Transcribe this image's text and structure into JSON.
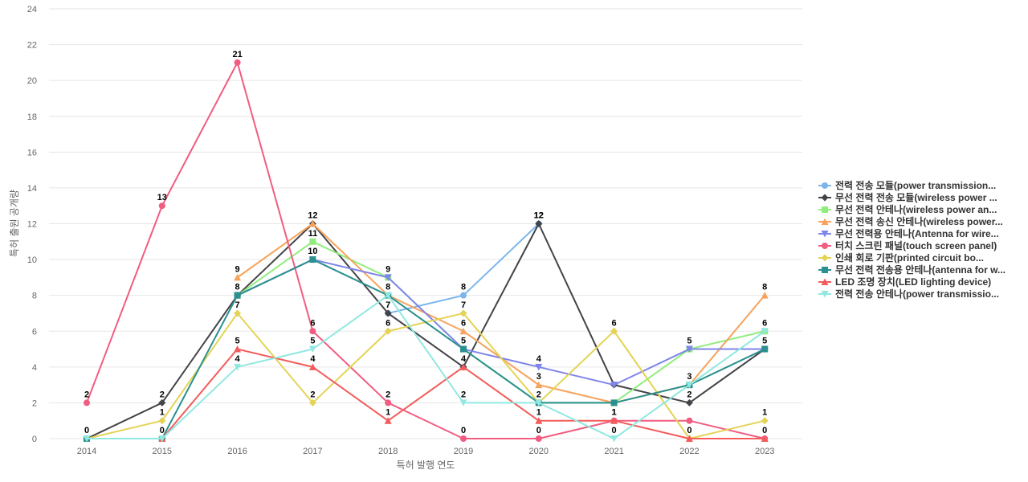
{
  "chart_data": {
    "type": "line",
    "title": "",
    "xlabel": "특허 발행 연도",
    "ylabel": "특허 출원 공개량",
    "x": [
      "2014",
      "2015",
      "2016",
      "2017",
      "2018",
      "2019",
      "2020",
      "2021",
      "2022",
      "2023"
    ],
    "ylim": [
      0,
      24
    ],
    "yticks": [
      0,
      2,
      4,
      6,
      8,
      10,
      12,
      14,
      16,
      18,
      20,
      22,
      24
    ],
    "grid": true,
    "legend_position": "right",
    "series": [
      {
        "name": "전력 전송 모듈(power transmission...",
        "color": "#7cb5ec",
        "marker": "circle",
        "values": [
          null,
          null,
          null,
          null,
          7,
          8,
          12,
          null,
          null,
          null
        ],
        "labels": [
          null,
          null,
          null,
          null,
          7,
          8,
          12,
          null,
          null,
          null
        ]
      },
      {
        "name": "무선 전력 전송 모듈(wireless power ...",
        "color": "#434348",
        "marker": "diamond",
        "values": [
          0,
          2,
          8,
          12,
          7,
          4,
          12,
          3,
          2,
          5
        ],
        "labels": [
          0,
          2,
          null,
          12,
          null,
          null,
          12,
          null,
          2,
          null
        ]
      },
      {
        "name": "무선 전력 안테나(wireless power an...",
        "color": "#90ed7d",
        "marker": "square",
        "values": [
          null,
          null,
          8,
          11,
          9,
          5,
          2,
          2,
          5,
          6
        ],
        "labels": [
          null,
          null,
          null,
          11,
          9,
          null,
          null,
          null,
          5,
          6
        ]
      },
      {
        "name": "무선 전력 송신 안테나(wireless power...",
        "color": "#f7a35c",
        "marker": "triangle",
        "values": [
          null,
          null,
          9,
          12,
          8,
          6,
          3,
          2,
          3,
          8
        ],
        "labels": [
          null,
          null,
          9,
          null,
          8,
          6,
          3,
          null,
          null,
          8
        ]
      },
      {
        "name": "무선 전력용 안테나(Antenna for wire...",
        "color": "#8085e9",
        "marker": "triangle-down",
        "values": [
          null,
          null,
          8,
          10,
          9,
          5,
          4,
          3,
          5,
          5
        ],
        "labels": [
          null,
          null,
          null,
          null,
          null,
          null,
          4,
          null,
          null,
          null
        ]
      },
      {
        "name": "터치 스크린 패널(touch screen panel)",
        "color": "#f15c80",
        "marker": "circle",
        "values": [
          2,
          13,
          21,
          6,
          2,
          0,
          0,
          1,
          1,
          0
        ],
        "labels": [
          2,
          13,
          21,
          6,
          2,
          0,
          0,
          1,
          null,
          0
        ]
      },
      {
        "name": "인쇄 회로 기판(printed circuit bo...",
        "color": "#e4d354",
        "marker": "diamond",
        "values": [
          0,
          1,
          7,
          2,
          6,
          7,
          2,
          6,
          0,
          1
        ],
        "labels": [
          null,
          1,
          7,
          2,
          6,
          7,
          2,
          6,
          0,
          1
        ]
      },
      {
        "name": "무선 전력 전송용 안테나(antenna for w...",
        "color": "#2b908f",
        "marker": "square",
        "values": [
          0,
          0,
          8,
          10,
          8,
          5,
          2,
          2,
          3,
          5
        ],
        "labels": [
          null,
          0,
          8,
          10,
          null,
          5,
          null,
          null,
          3,
          5
        ]
      },
      {
        "name": "LED 조명 장치(LED lighting device)",
        "color": "#f45b5b",
        "marker": "triangle",
        "values": [
          null,
          0,
          5,
          4,
          1,
          4,
          1,
          1,
          0,
          0
        ],
        "labels": [
          null,
          null,
          5,
          4,
          1,
          4,
          1,
          1,
          null,
          null
        ]
      },
      {
        "name": "전력 전송 안테나(power transmissio...",
        "color": "#91e8e1",
        "marker": "triangle-down",
        "values": [
          0,
          0,
          4,
          5,
          8,
          2,
          2,
          0,
          3,
          6
        ],
        "labels": [
          null,
          null,
          4,
          5,
          null,
          2,
          null,
          0,
          null,
          null
        ]
      }
    ]
  }
}
